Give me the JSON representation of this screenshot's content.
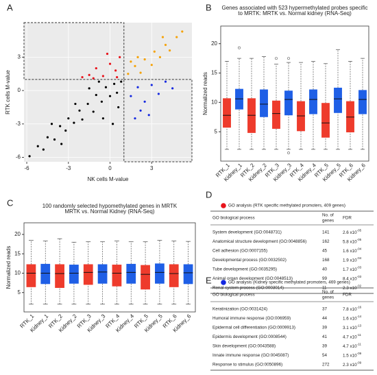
{
  "chart_data": [
    {
      "type": "scatter",
      "label": "A",
      "xlabel": "NK cells M-value",
      "ylabel": "RTK cells M-value",
      "xlim": [
        -6.2,
        5.9
      ],
      "ylim": [
        -6.4,
        6.1
      ],
      "xticks": [
        -6,
        -3,
        0,
        3
      ],
      "yticks": [
        -6,
        -3,
        0,
        3
      ],
      "thresholds": {
        "x": 1,
        "y": 1
      },
      "series": [
        {
          "color": "#000000",
          "x": [
            -5.8,
            -5.2,
            -4.8,
            -4.5,
            -4.0,
            -3.6,
            -3.2,
            -3.0,
            -2.6,
            -2.2,
            -2.0,
            -1.6,
            -1.2,
            -1.0,
            -0.6,
            -0.3,
            0.0,
            0.3,
            0.5,
            0.8,
            -2.5,
            -1.5,
            -0.5,
            0.2,
            -3.5,
            -4.2,
            0.6,
            -0.8
          ],
          "y": [
            -5.9,
            -5.0,
            -5.3,
            -4.2,
            -4.4,
            -3.2,
            -3.6,
            -2.5,
            -2.9,
            -1.8,
            -2.6,
            -1.2,
            -1.9,
            -0.4,
            -1.0,
            0.3,
            -0.5,
            0.6,
            -0.2,
            0.8,
            -1.2,
            0.2,
            -2.5,
            -3.0,
            -4.8,
            -3.0,
            -1.5,
            0.8
          ]
        },
        {
          "color": "#f5a30a",
          "x": [
            1.3,
            1.8,
            2.2,
            2.5,
            3.0,
            3.2,
            3.6,
            4.0,
            4.3,
            4.8,
            5.2,
            2.0,
            1.5,
            3.8
          ],
          "y": [
            1.5,
            2.2,
            1.6,
            2.8,
            2.3,
            3.5,
            3.0,
            4.1,
            3.6,
            4.8,
            5.3,
            3.0,
            2.6,
            4.8
          ]
        },
        {
          "color": "#e8141c",
          "x": [
            -1.5,
            -1.0,
            -0.5,
            0.0,
            0.4,
            -2.0,
            0.7,
            -0.2,
            0.5,
            -1.2
          ],
          "y": [
            1.4,
            2.0,
            1.3,
            2.4,
            1.8,
            1.2,
            3.0,
            3.3,
            1.2,
            1.1
          ]
        },
        {
          "color": "#1428e0",
          "x": [
            1.5,
            2.0,
            2.5,
            3.0,
            3.5,
            2.2,
            4.0,
            1.8,
            2.8,
            4.5
          ],
          "y": [
            -0.5,
            0.3,
            -1.0,
            0.5,
            -0.3,
            -1.8,
            0.8,
            -2.5,
            -2.2,
            0.2
          ]
        }
      ]
    },
    {
      "type": "box",
      "label": "B",
      "title": [
        "Genes associated with 523 hypermethylated probes specific",
        "to MRTK: MRTK vs. Normal kidney (RNA-Seq)"
      ],
      "ylabel": "Normalized reads",
      "ylim": [
        0,
        23
      ],
      "yticks": [
        5,
        10,
        15,
        20
      ],
      "categories": [
        "RTK_1",
        "Kidney_1",
        "RTK_2",
        "Kidney_2",
        "RTK_3",
        "Kidney_3",
        "RTK_4",
        "Kidney_4",
        "RTK_5",
        "Kidney_5",
        "RTK_6",
        "Kidney_6"
      ],
      "boxes": [
        {
          "color": "#ee3b2c",
          "low": 2,
          "q1": 5.7,
          "median": 7.8,
          "q3": 10.7,
          "high": 17,
          "outliers": []
        },
        {
          "color": "#1f5fe6",
          "low": 2,
          "q1": 8.8,
          "median": 10.6,
          "q3": 12.3,
          "high": 17.5,
          "outliers": [
            19.3
          ]
        },
        {
          "color": "#ee3b2c",
          "low": 2,
          "q1": 4.8,
          "median": 7.8,
          "q3": 10.7,
          "high": 17.5,
          "outliers": []
        },
        {
          "color": "#1f5fe6",
          "low": 2,
          "q1": 7.5,
          "median": 9.7,
          "q3": 12.2,
          "high": 17.8,
          "outliers": []
        },
        {
          "color": "#ee3b2c",
          "low": 2,
          "q1": 5.5,
          "median": 8.1,
          "q3": 10.3,
          "high": 16.5,
          "outliers": [
            17.5
          ]
        },
        {
          "color": "#1f5fe6",
          "low": 2,
          "q1": 7.8,
          "median": 10.5,
          "q3": 12,
          "high": 16.8,
          "outliers": [
            17.5,
            1.4
          ]
        },
        {
          "color": "#ee3b2c",
          "low": 2,
          "q1": 5.1,
          "median": 7.7,
          "q3": 10.2,
          "high": 16.8,
          "outliers": []
        },
        {
          "color": "#1f5fe6",
          "low": 2,
          "q1": 8,
          "median": 10.5,
          "q3": 12.2,
          "high": 17,
          "outliers": []
        },
        {
          "color": "#ee3b2c",
          "low": 2,
          "q1": 4,
          "median": 6.5,
          "q3": 9.9,
          "high": 16.6,
          "outliers": []
        },
        {
          "color": "#1f5fe6",
          "low": 2,
          "q1": 8.2,
          "median": 10.6,
          "q3": 12.5,
          "high": 19,
          "outliers": []
        },
        {
          "color": "#ee3b2c",
          "low": 2,
          "q1": 4.9,
          "median": 7.5,
          "q3": 10.2,
          "high": 17,
          "outliers": []
        },
        {
          "color": "#1f5fe6",
          "low": 2,
          "q1": 8,
          "median": 10.5,
          "q3": 12.1,
          "high": 17.5,
          "outliers": []
        }
      ]
    },
    {
      "type": "box",
      "label": "C",
      "title": [
        "100 randomly selected hypomethylated  genes in MRTK",
        "MRTK vs. Normal Kidney (RNA-Seq)"
      ],
      "ylabel": "Normalized reads",
      "ylim": [
        0,
        23
      ],
      "yticks": [
        5,
        10,
        15,
        20
      ],
      "categories": [
        "RTK_1",
        "Kidney_1",
        "RTK_2",
        "Kidney_2",
        "RTK_3",
        "Kidney_3",
        "RTK_4",
        "Kidney_4",
        "RTK_5",
        "Kidney_5",
        "RTK_6",
        "Kidney_6"
      ],
      "boxes": [
        {
          "color": "#ee3b2c",
          "low": 2,
          "q1": 6.4,
          "median": 10,
          "q3": 12.3,
          "high": 18.5,
          "outliers": []
        },
        {
          "color": "#1f5fe6",
          "low": 2,
          "q1": 7.2,
          "median": 10,
          "q3": 12.4,
          "high": 18.3,
          "outliers": []
        },
        {
          "color": "#ee3b2c",
          "low": 2,
          "q1": 6.2,
          "median": 9.9,
          "q3": 12.3,
          "high": 18.9,
          "outliers": []
        },
        {
          "color": "#1f5fe6",
          "low": 2,
          "q1": 7.3,
          "median": 10,
          "q3": 12.2,
          "high": 18,
          "outliers": []
        },
        {
          "color": "#ee3b2c",
          "low": 2,
          "q1": 7,
          "median": 10.2,
          "q3": 12.3,
          "high": 18.1,
          "outliers": []
        },
        {
          "color": "#1f5fe6",
          "low": 2,
          "q1": 7.3,
          "median": 10.3,
          "q3": 12.3,
          "high": 18.1,
          "outliers": []
        },
        {
          "color": "#ee3b2c",
          "low": 2,
          "q1": 6.6,
          "median": 10,
          "q3": 12.2,
          "high": 18.3,
          "outliers": []
        },
        {
          "color": "#1f5fe6",
          "low": 2,
          "q1": 7.3,
          "median": 10.2,
          "q3": 12.4,
          "high": 18.1,
          "outliers": []
        },
        {
          "color": "#ee3b2c",
          "low": 2,
          "q1": 5.8,
          "median": 9.7,
          "q3": 12.1,
          "high": 18.1,
          "outliers": []
        },
        {
          "color": "#1f5fe6",
          "low": 2,
          "q1": 7.3,
          "median": 10.2,
          "q3": 12.5,
          "high": 18.5,
          "outliers": []
        },
        {
          "color": "#ee3b2c",
          "low": 2,
          "q1": 6.4,
          "median": 9.9,
          "q3": 12.3,
          "high": 18.3,
          "outliers": []
        },
        {
          "color": "#1f5fe6",
          "low": 2,
          "q1": 7.2,
          "median": 10.1,
          "q3": 12.3,
          "high": 18.2,
          "outliers": []
        }
      ]
    }
  ],
  "tables": [
    {
      "label": "D",
      "legend": "GO analysis (RTK specific methylated promoters, 409 genes)",
      "legend_color": "#e8141c",
      "headers": [
        "GO biological process",
        [
          "No. of",
          "genes"
        ],
        "FDR"
      ],
      "rows": [
        [
          "System development (GO:0048731)",
          "141",
          "2.6 x10",
          "-05"
        ],
        [
          "Anatomical structure development (GO:0048856)",
          "162",
          "5.8 x10",
          "-05"
        ],
        [
          "Cell adhesion (GO:0007155)",
          "45",
          "1.6 x10",
          "-04"
        ],
        [
          "Developmental process (GO:0032502)",
          "168",
          "1.9 x10",
          "-04"
        ],
        [
          "Tube development (GO:0035295)",
          "40",
          "1.7 x10",
          "-03"
        ],
        [
          "Animal organ development (GO:0048513)",
          "99",
          "8.4 x10",
          "-03"
        ],
        [
          "Renal system process (GO:0003014)",
          "11",
          "2.3 x10",
          "-02"
        ]
      ]
    },
    {
      "label": "E",
      "legend": "GO analysis (Kidney specific methylated promoters, 469 genes)",
      "legend_color": "#1428e0",
      "headers": [
        "GO biological process",
        [
          "No. of",
          "genes"
        ],
        "FDR"
      ],
      "rows": [
        [
          "Keratinization (GO:0031424)",
          "37",
          "7.8 x10",
          "-16"
        ],
        [
          "Humoral immune response (GO:006959)",
          "44",
          "1.6 x10",
          "-14"
        ],
        [
          "Epidermal cell differentiation (GO:0009913)",
          "39",
          "3.1 x10",
          "-13"
        ],
        [
          "Epidermis development (GO:0008544)",
          "41",
          "4.7 x10",
          "-11"
        ],
        [
          "Skin development (GO:0043588)",
          "39",
          "4.7 x10",
          "-11"
        ],
        [
          "Innate immune response (GO:0045087)",
          "54",
          "1.5 x10",
          "-09"
        ],
        [
          "Response to stimulus (GO:0050896)",
          "272",
          "2.3 x10",
          "-09"
        ]
      ]
    }
  ]
}
